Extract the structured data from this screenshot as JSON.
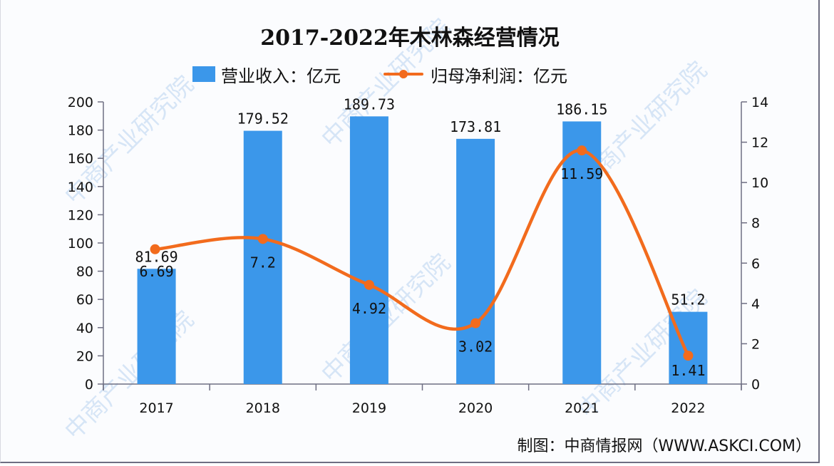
{
  "title": "2017-2022年木林森经营情况",
  "legend": {
    "bar_label": "营业收入：亿元",
    "line_label": "归母净利润：亿元"
  },
  "source": "制图：中商情报网（WWW.ASKCI.COM）",
  "watermark": "中商产业研究院",
  "colors": {
    "bar": "#3b97ea",
    "line": "#f26b1d",
    "axis": "#6e6e82"
  },
  "chart_data": {
    "type": "bar",
    "title": "2017-2022年木林森经营情况",
    "categories": [
      "2017",
      "2018",
      "2019",
      "2020",
      "2021",
      "2022"
    ],
    "series": [
      {
        "name": "营业收入：亿元",
        "type": "bar",
        "axis": "left",
        "values": [
          81.69,
          179.52,
          189.73,
          173.81,
          186.15,
          51.2
        ]
      },
      {
        "name": "归母净利润：亿元",
        "type": "line",
        "axis": "right",
        "smooth": true,
        "values": [
          6.69,
          7.2,
          4.92,
          3.02,
          11.59,
          1.41
        ]
      }
    ],
    "xlabel": "",
    "ylabel": "",
    "ylim": [
      0,
      200
    ],
    "yticks": [
      0,
      20,
      40,
      60,
      80,
      100,
      120,
      140,
      160,
      180,
      200
    ],
    "y2lim": [
      0,
      14
    ],
    "y2ticks": [
      0,
      2,
      4,
      6,
      8,
      10,
      12,
      14
    ],
    "grid": false,
    "legend_position": "top"
  }
}
